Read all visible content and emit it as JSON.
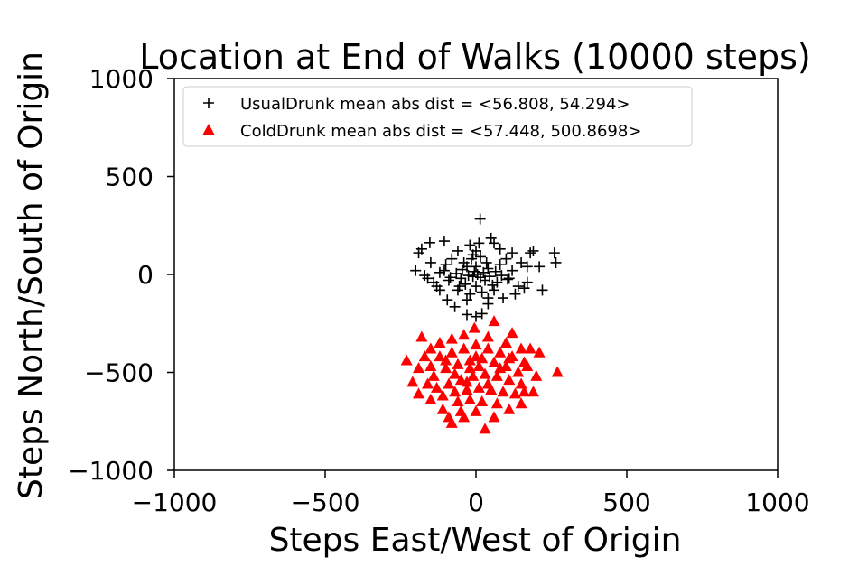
{
  "chart_data": {
    "type": "scatter",
    "title": "Location at End of Walks (10000 steps)",
    "xlabel": "Steps East/West of Origin",
    "ylabel": "Steps North/South of Origin",
    "xlim": [
      -1000,
      1000
    ],
    "ylim": [
      -1000,
      1000
    ],
    "xticks": [
      -1000,
      -500,
      0,
      500,
      1000
    ],
    "yticks": [
      -1000,
      -500,
      0,
      500,
      1000
    ],
    "xtick_labels": [
      "−1000",
      "−500",
      "0",
      "500",
      "1000"
    ],
    "ytick_labels": [
      "−1000",
      "−500",
      "0",
      "500",
      "1000"
    ],
    "grid": false,
    "legend_position": "top-left",
    "series": [
      {
        "name": "UsualDrunk mean abs dist = <56.808, 54.294>",
        "marker": "plus",
        "color": "#000000",
        "points": [
          [
            14,
            283
          ],
          [
            -105,
            170
          ],
          [
            -153,
            162
          ],
          [
            50,
            185
          ],
          [
            80,
            130
          ],
          [
            120,
            110
          ],
          [
            180,
            110
          ],
          [
            190,
            120
          ],
          [
            260,
            110
          ],
          [
            265,
            60
          ],
          [
            -180,
            130
          ],
          [
            -190,
            110
          ],
          [
            -200,
            20
          ],
          [
            -170,
            -5
          ],
          [
            -140,
            -40
          ],
          [
            -120,
            -80
          ],
          [
            -95,
            -130
          ],
          [
            -70,
            -165
          ],
          [
            -30,
            -205
          ],
          [
            0,
            -215
          ],
          [
            20,
            -200
          ],
          [
            40,
            -150
          ],
          [
            90,
            -120
          ],
          [
            140,
            -60
          ],
          [
            170,
            -40
          ],
          [
            170,
            40
          ],
          [
            210,
            40
          ],
          [
            220,
            -80
          ],
          [
            -60,
            120
          ],
          [
            -20,
            150
          ],
          [
            10,
            160
          ],
          [
            60,
            160
          ],
          [
            -80,
            80
          ],
          [
            -40,
            60
          ],
          [
            0,
            40
          ],
          [
            40,
            30
          ],
          [
            80,
            50
          ],
          [
            120,
            20
          ],
          [
            -120,
            10
          ],
          [
            -90,
            -30
          ],
          [
            -50,
            -20
          ],
          [
            -10,
            -10
          ],
          [
            30,
            -30
          ],
          [
            70,
            -40
          ],
          [
            110,
            -20
          ],
          [
            -60,
            -80
          ],
          [
            -20,
            -100
          ],
          [
            20,
            -90
          ],
          [
            60,
            -80
          ],
          [
            -30,
            40
          ],
          [
            -100,
            50
          ],
          [
            100,
            80
          ],
          [
            -130,
            -60
          ],
          [
            130,
            -100
          ],
          [
            5,
            0
          ],
          [
            -5,
            15
          ],
          [
            15,
            -15
          ],
          [
            -25,
            -5
          ],
          [
            25,
            10
          ],
          [
            -45,
            25
          ],
          [
            45,
            -10
          ],
          [
            -65,
            5
          ],
          [
            65,
            15
          ],
          [
            -85,
            -15
          ],
          [
            85,
            -5
          ],
          [
            -105,
            20
          ],
          [
            105,
            -25
          ],
          [
            -35,
            -50
          ],
          [
            35,
            60
          ],
          [
            -15,
            80
          ],
          [
            15,
            90
          ],
          [
            -55,
            -60
          ],
          [
            55,
            -55
          ],
          [
            0,
            -60
          ],
          [
            -10,
            100
          ],
          [
            150,
            60
          ],
          [
            -150,
            60
          ],
          [
            -160,
            -20
          ],
          [
            160,
            -70
          ],
          [
            0,
            120
          ],
          [
            -30,
            -130
          ],
          [
            40,
            -120
          ]
        ]
      },
      {
        "name": "ColdDrunk mean abs dist = <57.448, 500.8698>",
        "marker": "triangle",
        "color": "#ff0000",
        "points": [
          [
            -5,
            -275
          ],
          [
            60,
            -240
          ],
          [
            120,
            -300
          ],
          [
            -180,
            -320
          ],
          [
            -230,
            -440
          ],
          [
            -210,
            -550
          ],
          [
            -190,
            -610
          ],
          [
            -150,
            -640
          ],
          [
            -110,
            -690
          ],
          [
            -90,
            -730
          ],
          [
            -80,
            -760
          ],
          [
            -40,
            -730
          ],
          [
            30,
            -790
          ],
          [
            60,
            -730
          ],
          [
            110,
            -690
          ],
          [
            150,
            -660
          ],
          [
            190,
            -600
          ],
          [
            200,
            -520
          ],
          [
            210,
            -400
          ],
          [
            270,
            -500
          ],
          [
            180,
            -380
          ],
          [
            150,
            -380
          ],
          [
            100,
            -350
          ],
          [
            40,
            -320
          ],
          [
            -40,
            -310
          ],
          [
            -80,
            -330
          ],
          [
            -120,
            -350
          ],
          [
            -150,
            -380
          ],
          [
            -170,
            -420
          ],
          [
            -150,
            -470
          ],
          [
            -120,
            -420
          ],
          [
            -80,
            -400
          ],
          [
            -40,
            -380
          ],
          [
            0,
            -360
          ],
          [
            40,
            -380
          ],
          [
            80,
            -400
          ],
          [
            120,
            -420
          ],
          [
            160,
            -450
          ],
          [
            -140,
            -520
          ],
          [
            -100,
            -480
          ],
          [
            -60,
            -460
          ],
          [
            -20,
            -440
          ],
          [
            20,
            -430
          ],
          [
            60,
            -450
          ],
          [
            100,
            -470
          ],
          [
            140,
            -500
          ],
          [
            -130,
            -580
          ],
          [
            -90,
            -560
          ],
          [
            -50,
            -540
          ],
          [
            -10,
            -520
          ],
          [
            30,
            -510
          ],
          [
            70,
            -520
          ],
          [
            110,
            -540
          ],
          [
            150,
            -560
          ],
          [
            -110,
            -620
          ],
          [
            -70,
            -600
          ],
          [
            -30,
            -590
          ],
          [
            10,
            -580
          ],
          [
            50,
            -590
          ],
          [
            90,
            -600
          ],
          [
            130,
            -610
          ],
          [
            -60,
            -650
          ],
          [
            -20,
            -640
          ],
          [
            20,
            -650
          ],
          [
            70,
            -660
          ],
          [
            0,
            -700
          ],
          [
            -50,
            -700
          ],
          [
            -20,
            -480
          ],
          [
            10,
            -470
          ],
          [
            -70,
            -510
          ],
          [
            80,
            -480
          ],
          [
            -100,
            -440
          ],
          [
            110,
            -430
          ],
          [
            0,
            -420
          ],
          [
            -30,
            -550
          ],
          [
            40,
            -560
          ],
          [
            -160,
            -560
          ],
          [
            170,
            -470
          ],
          [
            -190,
            -480
          ],
          [
            160,
            -600
          ]
        ]
      }
    ]
  }
}
